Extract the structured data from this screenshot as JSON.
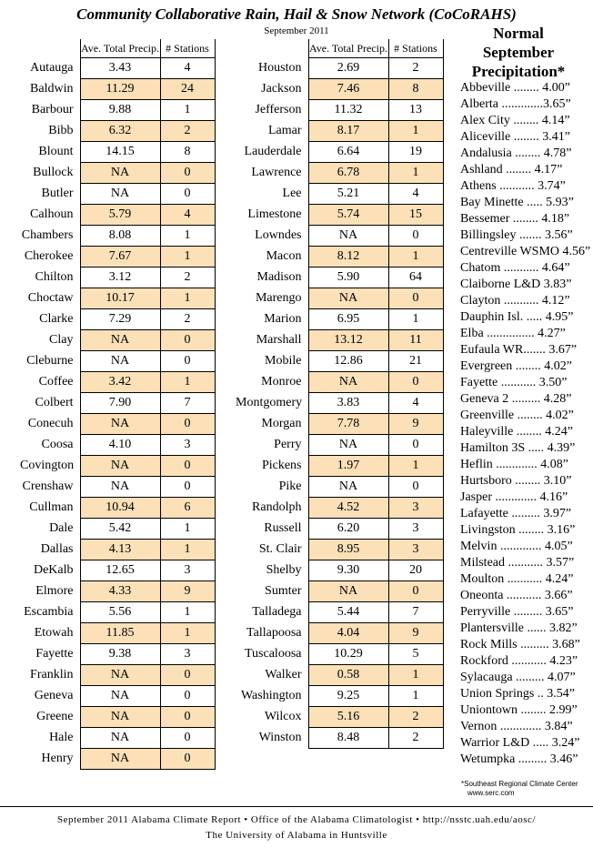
{
  "title": "Community Collaborative Rain, Hail & Snow Network (CoCoRAHS)",
  "subtitle": "September 2011",
  "column_headers": {
    "precip": "Ave. Total Precip.",
    "stations": "# Stations"
  },
  "left_counties": [
    [
      "Autauga",
      "3.43",
      "4"
    ],
    [
      "Baldwin",
      "11.29",
      "24"
    ],
    [
      "Barbour",
      "9.88",
      "1"
    ],
    [
      "Bibb",
      "6.32",
      "2"
    ],
    [
      "Blount",
      "14.15",
      "8"
    ],
    [
      "Bullock",
      "NA",
      "0"
    ],
    [
      "Butler",
      "NA",
      "0"
    ],
    [
      "Calhoun",
      "5.79",
      "4"
    ],
    [
      "Chambers",
      "8.08",
      "1"
    ],
    [
      "Cherokee",
      "7.67",
      "1"
    ],
    [
      "Chilton",
      "3.12",
      "2"
    ],
    [
      "Choctaw",
      "10.17",
      "1"
    ],
    [
      "Clarke",
      "7.29",
      "2"
    ],
    [
      "Clay",
      "NA",
      "0"
    ],
    [
      "Cleburne",
      "NA",
      "0"
    ],
    [
      "Coffee",
      "3.42",
      "1"
    ],
    [
      "Colbert",
      "7.90",
      "7"
    ],
    [
      "Conecuh",
      "NA",
      "0"
    ],
    [
      "Coosa",
      "4.10",
      "3"
    ],
    [
      "Covington",
      "NA",
      "0"
    ],
    [
      "Crenshaw",
      "NA",
      "0"
    ],
    [
      "Cullman",
      "10.94",
      "6"
    ],
    [
      "Dale",
      "5.42",
      "1"
    ],
    [
      "Dallas",
      "4.13",
      "1"
    ],
    [
      "DeKalb",
      "12.65",
      "3"
    ],
    [
      "Elmore",
      "4.33",
      "9"
    ],
    [
      "Escambia",
      "5.56",
      "1"
    ],
    [
      "Etowah",
      "11.85",
      "1"
    ],
    [
      "Fayette",
      "9.38",
      "3"
    ],
    [
      "Franklin",
      "NA",
      "0"
    ],
    [
      "Geneva",
      "NA",
      "0"
    ],
    [
      "Greene",
      "NA",
      "0"
    ],
    [
      "Hale",
      "NA",
      "0"
    ],
    [
      "Henry",
      "NA",
      "0"
    ]
  ],
  "right_counties": [
    [
      "Houston",
      "2.69",
      "2"
    ],
    [
      "Jackson",
      "7.46",
      "8"
    ],
    [
      "Jefferson",
      "11.32",
      "13"
    ],
    [
      "Lamar",
      "8.17",
      "1"
    ],
    [
      "Lauderdale",
      "6.64",
      "19"
    ],
    [
      "Lawrence",
      "6.78",
      "1"
    ],
    [
      "Lee",
      "5.21",
      "4"
    ],
    [
      "Limestone",
      "5.74",
      "15"
    ],
    [
      "Lowndes",
      "NA",
      "0"
    ],
    [
      "Macon",
      "8.12",
      "1"
    ],
    [
      "Madison",
      "5.90",
      "64"
    ],
    [
      "Marengo",
      "NA",
      "0"
    ],
    [
      "Marion",
      "6.95",
      "1"
    ],
    [
      "Marshall",
      "13.12",
      "11"
    ],
    [
      "Mobile",
      "12.86",
      "21"
    ],
    [
      "Monroe",
      "NA",
      "0"
    ],
    [
      "Montgomery",
      "3.83",
      "4"
    ],
    [
      "Morgan",
      "7.78",
      "9"
    ],
    [
      "Perry",
      "NA",
      "0"
    ],
    [
      "Pickens",
      "1.97",
      "1"
    ],
    [
      "Pike",
      "NA",
      "0"
    ],
    [
      "Randolph",
      "4.52",
      "3"
    ],
    [
      "Russell",
      "6.20",
      "3"
    ],
    [
      "St. Clair",
      "8.95",
      "3"
    ],
    [
      "Shelby",
      "9.30",
      "20"
    ],
    [
      "Sumter",
      "NA",
      "0"
    ],
    [
      "Talladega",
      "5.44",
      "7"
    ],
    [
      "Tallapoosa",
      "4.04",
      "9"
    ],
    [
      "Tuscaloosa",
      "10.29",
      "5"
    ],
    [
      "Walker",
      "0.58",
      "1"
    ],
    [
      "Washington",
      "9.25",
      "1"
    ],
    [
      "Wilcox",
      "5.16",
      "2"
    ],
    [
      "Winston",
      "8.48",
      "2"
    ]
  ],
  "normal": {
    "title_lines": [
      "Normal",
      "September",
      "Precipitation*"
    ],
    "items": [
      "Abbeville ........ 4.00”",
      "Alberta .............3.65”",
      "Alex City ........ 4.14”",
      "Aliceville ........ 3.41”",
      "Andalusia ........ 4.78”",
      "Ashland ........ 4.17”",
      "Athens ........... 3.74”",
      "Bay Minette ..... 5.93”",
      "Bessemer ........ 4.18”",
      "Billingsley ....... 3.56”",
      "Centreville WSMO 4.56”",
      "Chatom ........... 4.64”",
      "Claiborne L&D 3.83”",
      "Clayton ........... 4.12”",
      "Dauphin Isl. ..... 4.95”",
      "Elba ............... 4.27”",
      "Eufaula WR....... 3.67”",
      "Evergreen ........ 4.02”",
      "Fayette ........... 3.50”",
      "Geneva 2 ......... 4.28”",
      "Greenville ........ 4.02”",
      "Haleyville ........ 4.24”",
      "Hamilton 3S ..... 4.39”",
      "Heflin ............. 4.08”",
      "Hurtsboro ........ 3.10”",
      "Jasper ............. 4.16”",
      "Lafayette ......... 3.97”",
      "Livingston ........ 3.16”",
      "Melvin ............. 4.05”",
      "Milstead ........... 3.57”",
      "Moulton ........... 4.24”",
      "Oneonta ........... 3.66”",
      "Perryville ......... 3.65”",
      "Plantersville ...... 3.82”",
      "Rock Mills ......... 3.68”",
      "Rockford ........... 4.23”",
      "Sylacauga ......... 4.07”",
      "Union Springs .. 3.54”",
      "Uniontown ........ 2.99”",
      "Vernon ............. 3.84”",
      "Warrior L&D ..... 3.24”",
      "Wetumpka ......... 3.46”"
    ],
    "footnote": "*Southeast Regional Climate Center",
    "footnote_url": "www.serc.com"
  },
  "footer": {
    "line1": "September 2011 Alabama Climate Report   •   Office of the Alabama Climatologist   •   http://nsstc.uah.edu/aosc/",
    "line2": "The University of Alabama in Huntsville"
  }
}
